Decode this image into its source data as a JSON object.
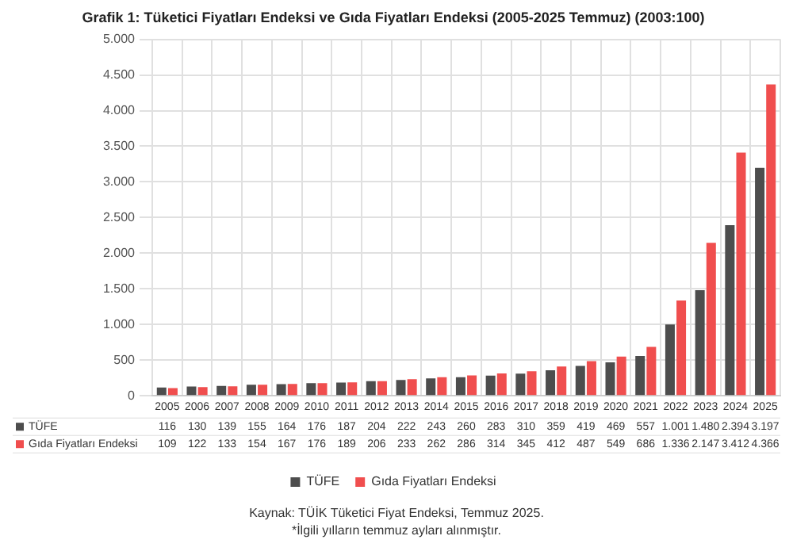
{
  "chart_data": {
    "type": "bar",
    "title": "Grafik 1: Tüketici Fiyatları Endeksi ve Gıda Fiyatları Endeksi (2005-2025 Temmuz) (2003:100)",
    "categories": [
      "2005",
      "2006",
      "2007",
      "2008",
      "2009",
      "2010",
      "2011",
      "2012",
      "2013",
      "2014",
      "2015",
      "2016",
      "2017",
      "2018",
      "2019",
      "2020",
      "2021",
      "2022",
      "2023",
      "2024",
      "2025"
    ],
    "series": [
      {
        "name": "TÜFE",
        "color": "#4d4d4d",
        "values": [
          116,
          130,
          139,
          155,
          164,
          176,
          187,
          204,
          222,
          243,
          260,
          283,
          310,
          359,
          419,
          469,
          557,
          1001,
          1480,
          2394,
          3197
        ],
        "value_labels": [
          "116",
          "130",
          "139",
          "155",
          "164",
          "176",
          "187",
          "204",
          "222",
          "243",
          "260",
          "283",
          "310",
          "359",
          "419",
          "469",
          "557",
          "1.001",
          "1.480",
          "2.394",
          "3.197"
        ]
      },
      {
        "name": "Gıda Fiyatları Endeksi",
        "color": "#f04e4e",
        "values": [
          109,
          122,
          133,
          154,
          167,
          176,
          189,
          206,
          233,
          262,
          286,
          314,
          345,
          412,
          487,
          549,
          686,
          1336,
          2147,
          3412,
          4366
        ],
        "value_labels": [
          "109",
          "122",
          "133",
          "154",
          "167",
          "176",
          "189",
          "206",
          "233",
          "262",
          "286",
          "314",
          "345",
          "412",
          "487",
          "549",
          "686",
          "1.336",
          "2.147",
          "3.412",
          "4.366"
        ]
      }
    ],
    "ylim": [
      0,
      5000
    ],
    "yticks": [
      0,
      500,
      {
        "value": 1000,
        "label": "1.000"
      },
      {
        "value": 1500,
        "label": "1.500"
      },
      {
        "value": 2000,
        "label": "2.000"
      },
      {
        "value": 2500,
        "label": "2.500"
      },
      {
        "value": 3000,
        "label": "3.000"
      },
      {
        "value": 3500,
        "label": "3.500"
      },
      {
        "value": 4000,
        "label": "4.000"
      },
      {
        "value": 4500,
        "label": "4.500"
      },
      {
        "value": 5000,
        "label": "5.000"
      }
    ],
    "grid": true,
    "legend": "bottom",
    "annotations": [
      "Kaynak: TÜİK Tüketici Fiyat Endeksi, Temmuz 2025.",
      "*İlgili yılların temmuz ayları alınmıştır."
    ]
  }
}
